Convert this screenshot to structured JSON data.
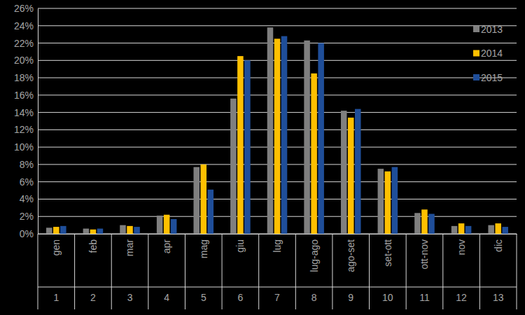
{
  "chart_data": {
    "type": "bar",
    "categories": [
      "gen",
      "feb",
      "mar",
      "apr",
      "mag",
      "giu",
      "lug",
      "lug-ago",
      "ago-set",
      "set-ott",
      "ott-nov",
      "nov",
      "dic"
    ],
    "category_numbers": [
      1,
      2,
      3,
      4,
      5,
      6,
      7,
      8,
      9,
      10,
      11,
      12,
      13
    ],
    "series": [
      {
        "name": "2013",
        "color": "#7f7f7f",
        "values": [
          0.7,
          0.6,
          1.0,
          2.1,
          7.7,
          15.6,
          23.8,
          22.3,
          14.2,
          7.5,
          2.4,
          0.9,
          1.0
        ]
      },
      {
        "name": "2014",
        "color": "#ffc000",
        "values": [
          0.8,
          0.5,
          0.9,
          2.2,
          8.0,
          20.5,
          22.5,
          18.5,
          13.4,
          7.2,
          2.8,
          1.2,
          1.2
        ]
      },
      {
        "name": "2015",
        "color": "#1f4e99",
        "values": [
          0.9,
          0.6,
          0.8,
          1.7,
          5.1,
          20.0,
          22.8,
          22.0,
          14.4,
          7.7,
          2.3,
          0.9,
          0.8
        ]
      }
    ],
    "ylim": [
      0,
      26
    ],
    "yticks": [
      {
        "value": 0,
        "label": "0%"
      },
      {
        "value": 2,
        "label": "2%"
      },
      {
        "value": 4,
        "label": "4%"
      },
      {
        "value": 6,
        "label": "6%"
      },
      {
        "value": 8,
        "label": "8%"
      },
      {
        "value": 10,
        "label": "10%"
      },
      {
        "value": 12,
        "label": "12%"
      },
      {
        "value": 14,
        "label": "14%"
      },
      {
        "value": 16,
        "label": "16%"
      },
      {
        "value": 18,
        "label": "18%"
      },
      {
        "value": 20,
        "label": "20%"
      },
      {
        "value": 22,
        "label": "22%"
      },
      {
        "value": 24,
        "label": "24%"
      },
      {
        "value": 26,
        "label": "26%"
      }
    ],
    "grid": true,
    "legend": "top-right"
  }
}
